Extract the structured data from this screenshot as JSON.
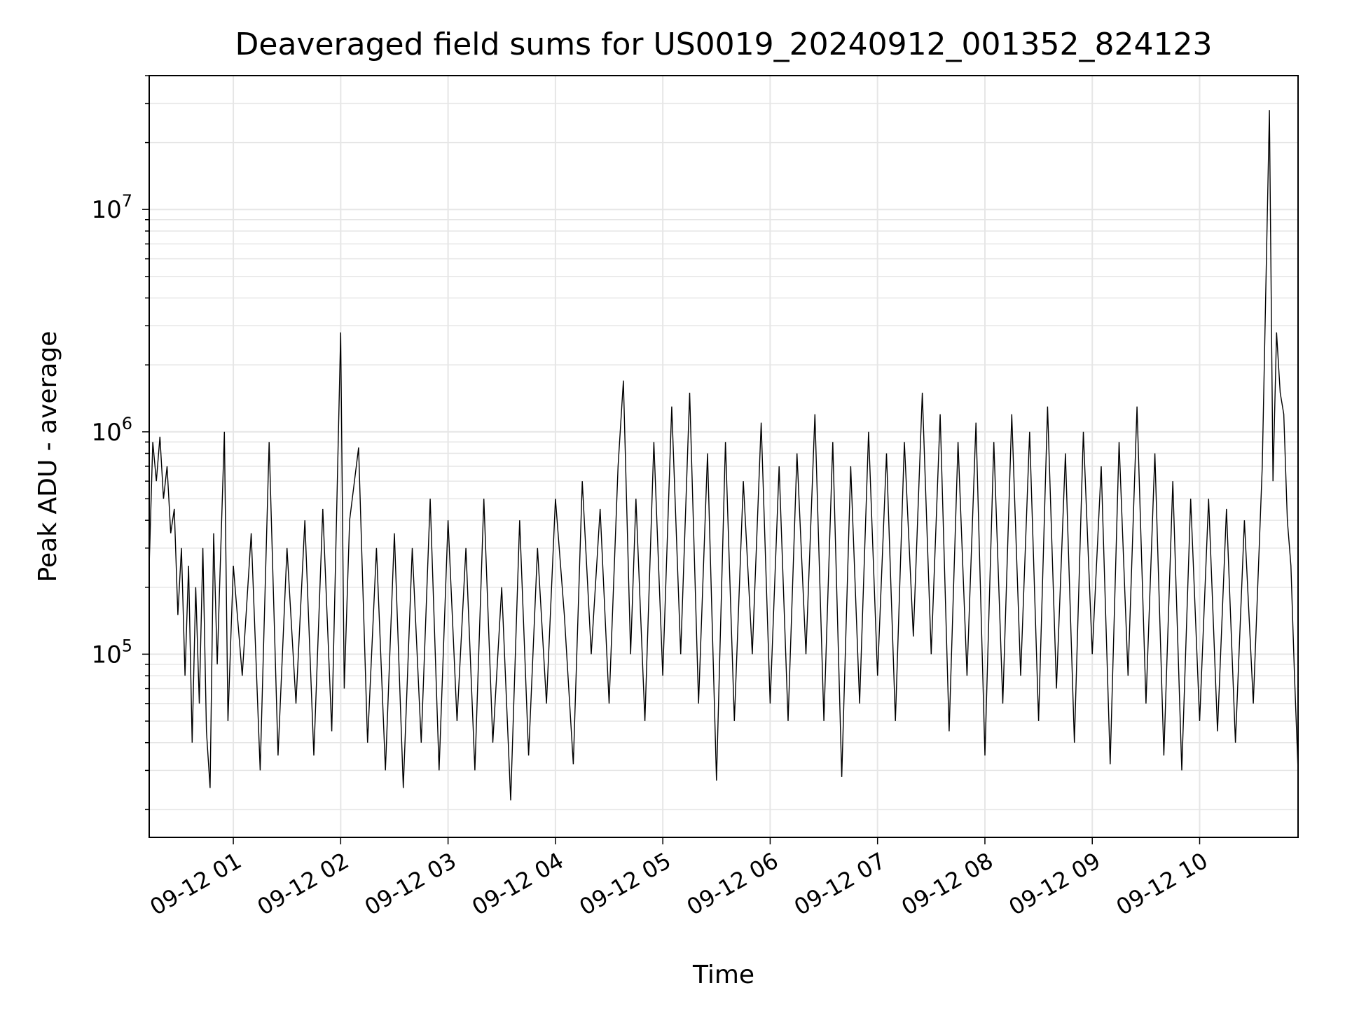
{
  "chart_data": {
    "type": "line",
    "title": "Deaveraged field sums for US0019_20240912_001352_824123",
    "xlabel": "Time",
    "ylabel": "Peak ADU - average",
    "y_scale": "log",
    "ylim": [
      15000,
      40000000
    ],
    "xlim": [
      "2024-09-12 00:13",
      "2024-09-12 10:55"
    ],
    "x_ticks": [
      {
        "value": "2024-09-12 01:00",
        "label": "09-12 01"
      },
      {
        "value": "2024-09-12 02:00",
        "label": "09-12 02"
      },
      {
        "value": "2024-09-12 03:00",
        "label": "09-12 03"
      },
      {
        "value": "2024-09-12 04:00",
        "label": "09-12 04"
      },
      {
        "value": "2024-09-12 05:00",
        "label": "09-12 05"
      },
      {
        "value": "2024-09-12 06:00",
        "label": "09-12 06"
      },
      {
        "value": "2024-09-12 07:00",
        "label": "09-12 07"
      },
      {
        "value": "2024-09-12 08:00",
        "label": "09-12 08"
      },
      {
        "value": "2024-09-12 09:00",
        "label": "09-12 09"
      },
      {
        "value": "2024-09-12 10:00",
        "label": "09-12 10"
      }
    ],
    "y_ticks": [
      {
        "value": 100000,
        "base": "10",
        "exp": "5"
      },
      {
        "value": 1000000,
        "base": "10",
        "exp": "6"
      },
      {
        "value": 10000000,
        "base": "10",
        "exp": "7"
      }
    ],
    "grid": true,
    "grid_minor": true,
    "line_color": "#000000",
    "grid_color": "#e6e6e6",
    "series": [
      {
        "values": [
          [
            "2024-09-12 00:13",
            250000
          ],
          [
            "2024-09-12 00:15",
            900000
          ],
          [
            "2024-09-12 00:17",
            600000
          ],
          [
            "2024-09-12 00:19",
            950000
          ],
          [
            "2024-09-12 00:21",
            500000
          ],
          [
            "2024-09-12 00:23",
            700000
          ],
          [
            "2024-09-12 00:25",
            350000
          ],
          [
            "2024-09-12 00:27",
            450000
          ],
          [
            "2024-09-12 00:29",
            150000
          ],
          [
            "2024-09-12 00:31",
            300000
          ],
          [
            "2024-09-12 00:33",
            80000
          ],
          [
            "2024-09-12 00:35",
            250000
          ],
          [
            "2024-09-12 00:37",
            40000
          ],
          [
            "2024-09-12 00:39",
            200000
          ],
          [
            "2024-09-12 00:41",
            60000
          ],
          [
            "2024-09-12 00:43",
            300000
          ],
          [
            "2024-09-12 00:45",
            45000
          ],
          [
            "2024-09-12 00:47",
            25000
          ],
          [
            "2024-09-12 00:49",
            350000
          ],
          [
            "2024-09-12 00:51",
            90000
          ],
          [
            "2024-09-12 00:53",
            300000
          ],
          [
            "2024-09-12 00:55",
            1000000
          ],
          [
            "2024-09-12 00:57",
            50000
          ],
          [
            "2024-09-12 01:00",
            250000
          ],
          [
            "2024-09-12 01:05",
            80000
          ],
          [
            "2024-09-12 01:10",
            350000
          ],
          [
            "2024-09-12 01:15",
            30000
          ],
          [
            "2024-09-12 01:20",
            900000
          ],
          [
            "2024-09-12 01:25",
            35000
          ],
          [
            "2024-09-12 01:30",
            300000
          ],
          [
            "2024-09-12 01:35",
            60000
          ],
          [
            "2024-09-12 01:40",
            400000
          ],
          [
            "2024-09-12 01:45",
            35000
          ],
          [
            "2024-09-12 01:50",
            450000
          ],
          [
            "2024-09-12 01:55",
            45000
          ],
          [
            "2024-09-12 02:00",
            2800000
          ],
          [
            "2024-09-12 02:02",
            70000
          ],
          [
            "2024-09-12 02:05",
            400000
          ],
          [
            "2024-09-12 02:10",
            850000
          ],
          [
            "2024-09-12 02:15",
            40000
          ],
          [
            "2024-09-12 02:20",
            300000
          ],
          [
            "2024-09-12 02:25",
            30000
          ],
          [
            "2024-09-12 02:30",
            350000
          ],
          [
            "2024-09-12 02:35",
            25000
          ],
          [
            "2024-09-12 02:40",
            300000
          ],
          [
            "2024-09-12 02:45",
            40000
          ],
          [
            "2024-09-12 02:50",
            500000
          ],
          [
            "2024-09-12 02:55",
            30000
          ],
          [
            "2024-09-12 03:00",
            400000
          ],
          [
            "2024-09-12 03:05",
            50000
          ],
          [
            "2024-09-12 03:10",
            300000
          ],
          [
            "2024-09-12 03:15",
            30000
          ],
          [
            "2024-09-12 03:20",
            500000
          ],
          [
            "2024-09-12 03:25",
            40000
          ],
          [
            "2024-09-12 03:30",
            200000
          ],
          [
            "2024-09-12 03:35",
            22000
          ],
          [
            "2024-09-12 03:40",
            400000
          ],
          [
            "2024-09-12 03:45",
            35000
          ],
          [
            "2024-09-12 03:50",
            300000
          ],
          [
            "2024-09-12 03:55",
            60000
          ],
          [
            "2024-09-12 04:00",
            500000
          ],
          [
            "2024-09-12 04:05",
            150000
          ],
          [
            "2024-09-12 04:10",
            32000
          ],
          [
            "2024-09-12 04:15",
            600000
          ],
          [
            "2024-09-12 04:20",
            100000
          ],
          [
            "2024-09-12 04:25",
            450000
          ],
          [
            "2024-09-12 04:30",
            60000
          ],
          [
            "2024-09-12 04:35",
            700000
          ],
          [
            "2024-09-12 04:38",
            1700000
          ],
          [
            "2024-09-12 04:42",
            100000
          ],
          [
            "2024-09-12 04:45",
            500000
          ],
          [
            "2024-09-12 04:50",
            50000
          ],
          [
            "2024-09-12 04:55",
            900000
          ],
          [
            "2024-09-12 05:00",
            80000
          ],
          [
            "2024-09-12 05:05",
            1300000
          ],
          [
            "2024-09-12 05:10",
            100000
          ],
          [
            "2024-09-12 05:15",
            1500000
          ],
          [
            "2024-09-12 05:20",
            60000
          ],
          [
            "2024-09-12 05:25",
            800000
          ],
          [
            "2024-09-12 05:30",
            27000
          ],
          [
            "2024-09-12 05:35",
            900000
          ],
          [
            "2024-09-12 05:40",
            50000
          ],
          [
            "2024-09-12 05:45",
            600000
          ],
          [
            "2024-09-12 05:50",
            100000
          ],
          [
            "2024-09-12 05:55",
            1100000
          ],
          [
            "2024-09-12 06:00",
            60000
          ],
          [
            "2024-09-12 06:05",
            700000
          ],
          [
            "2024-09-12 06:10",
            50000
          ],
          [
            "2024-09-12 06:15",
            800000
          ],
          [
            "2024-09-12 06:20",
            100000
          ],
          [
            "2024-09-12 06:25",
            1200000
          ],
          [
            "2024-09-12 06:30",
            50000
          ],
          [
            "2024-09-12 06:35",
            900000
          ],
          [
            "2024-09-12 06:40",
            28000
          ],
          [
            "2024-09-12 06:45",
            700000
          ],
          [
            "2024-09-12 06:50",
            60000
          ],
          [
            "2024-09-12 06:55",
            1000000
          ],
          [
            "2024-09-12 07:00",
            80000
          ],
          [
            "2024-09-12 07:05",
            800000
          ],
          [
            "2024-09-12 07:10",
            50000
          ],
          [
            "2024-09-12 07:15",
            900000
          ],
          [
            "2024-09-12 07:20",
            120000
          ],
          [
            "2024-09-12 07:25",
            1500000
          ],
          [
            "2024-09-12 07:30",
            100000
          ],
          [
            "2024-09-12 07:35",
            1200000
          ],
          [
            "2024-09-12 07:40",
            45000
          ],
          [
            "2024-09-12 07:45",
            900000
          ],
          [
            "2024-09-12 07:50",
            80000
          ],
          [
            "2024-09-12 07:55",
            1100000
          ],
          [
            "2024-09-12 08:00",
            35000
          ],
          [
            "2024-09-12 08:05",
            900000
          ],
          [
            "2024-09-12 08:10",
            60000
          ],
          [
            "2024-09-12 08:15",
            1200000
          ],
          [
            "2024-09-12 08:20",
            80000
          ],
          [
            "2024-09-12 08:25",
            1000000
          ],
          [
            "2024-09-12 08:30",
            50000
          ],
          [
            "2024-09-12 08:35",
            1300000
          ],
          [
            "2024-09-12 08:40",
            70000
          ],
          [
            "2024-09-12 08:45",
            800000
          ],
          [
            "2024-09-12 08:50",
            40000
          ],
          [
            "2024-09-12 08:55",
            1000000
          ],
          [
            "2024-09-12 09:00",
            100000
          ],
          [
            "2024-09-12 09:05",
            700000
          ],
          [
            "2024-09-12 09:10",
            32000
          ],
          [
            "2024-09-12 09:15",
            900000
          ],
          [
            "2024-09-12 09:20",
            80000
          ],
          [
            "2024-09-12 09:25",
            1300000
          ],
          [
            "2024-09-12 09:30",
            60000
          ],
          [
            "2024-09-12 09:35",
            800000
          ],
          [
            "2024-09-12 09:40",
            35000
          ],
          [
            "2024-09-12 09:45",
            600000
          ],
          [
            "2024-09-12 09:50",
            30000
          ],
          [
            "2024-09-12 09:55",
            500000
          ],
          [
            "2024-09-12 10:00",
            50000
          ],
          [
            "2024-09-12 10:05",
            500000
          ],
          [
            "2024-09-12 10:10",
            45000
          ],
          [
            "2024-09-12 10:15",
            450000
          ],
          [
            "2024-09-12 10:20",
            40000
          ],
          [
            "2024-09-12 10:25",
            400000
          ],
          [
            "2024-09-12 10:30",
            60000
          ],
          [
            "2024-09-12 10:35",
            700000
          ],
          [
            "2024-09-12 10:39",
            28000000
          ],
          [
            "2024-09-12 10:41",
            600000
          ],
          [
            "2024-09-12 10:43",
            2800000
          ],
          [
            "2024-09-12 10:45",
            1500000
          ],
          [
            "2024-09-12 10:47",
            1200000
          ],
          [
            "2024-09-12 10:49",
            400000
          ],
          [
            "2024-09-12 10:51",
            250000
          ],
          [
            "2024-09-12 10:53",
            80000
          ],
          [
            "2024-09-12 10:55",
            30000
          ]
        ]
      }
    ]
  }
}
